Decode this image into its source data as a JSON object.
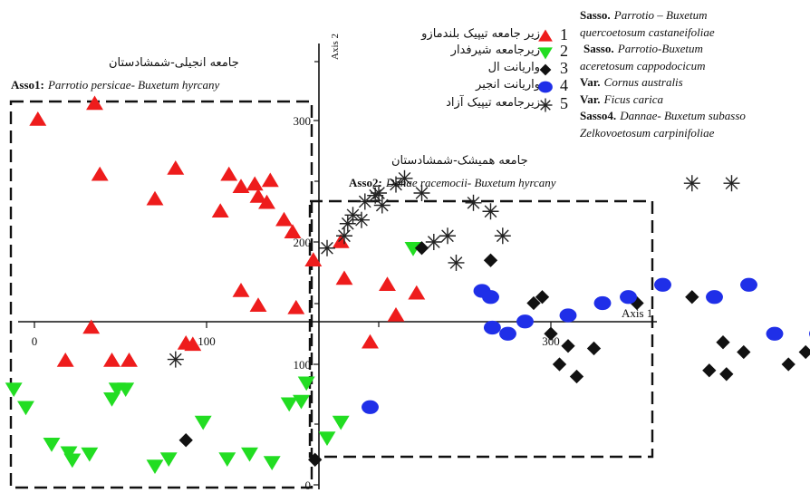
{
  "chart_data": {
    "type": "scatter",
    "xlabel": "Axis 1",
    "ylabel": "Axis 2",
    "xticks": [
      "0",
      "100",
      "300"
    ],
    "yticks": [
      "300",
      "200",
      "100",
      "0"
    ],
    "colors": {
      "g1": "#ee1c1c",
      "g2": "#22dd22",
      "g3": "#111111",
      "g4": "#1f2fe8",
      "g5": "#222222"
    },
    "series": [
      {
        "name": "زیر جامعه تیپیک بلندمازو",
        "marker": "triangle",
        "color": "#ee1c1c",
        "points": [
          [
            2,
            300
          ],
          [
            35,
            313
          ],
          [
            38,
            255
          ],
          [
            33,
            130
          ],
          [
            82,
            260
          ],
          [
            70,
            235
          ],
          [
            108,
            225
          ],
          [
            113,
            255
          ],
          [
            128,
            247
          ],
          [
            120,
            245
          ],
          [
            130,
            237
          ],
          [
            135,
            232
          ],
          [
            137,
            250
          ],
          [
            145,
            218
          ],
          [
            150,
            208
          ],
          [
            178,
            200
          ],
          [
            162,
            185
          ],
          [
            120,
            160
          ],
          [
            130,
            148
          ],
          [
            180,
            170
          ],
          [
            205,
            165
          ],
          [
            222,
            158
          ],
          [
            210,
            140
          ],
          [
            18,
            103
          ],
          [
            45,
            103
          ],
          [
            55,
            103
          ],
          [
            88,
            117
          ],
          [
            92,
            116
          ],
          [
            152,
            146
          ],
          [
            195,
            118
          ]
        ]
      },
      {
        "name": "زیرجامعه شیرفدار",
        "marker": "triangle-down",
        "color": "#22dd22",
        "points": [
          [
            -12,
            80
          ],
          [
            -5,
            65
          ],
          [
            10,
            35
          ],
          [
            20,
            28
          ],
          [
            22,
            22
          ],
          [
            32,
            27
          ],
          [
            45,
            72
          ],
          [
            48,
            80
          ],
          [
            53,
            80
          ],
          [
            70,
            17
          ],
          [
            78,
            23
          ],
          [
            98,
            53
          ],
          [
            112,
            23
          ],
          [
            125,
            27
          ],
          [
            138,
            20
          ],
          [
            148,
            68
          ],
          [
            155,
            70
          ],
          [
            158,
            85
          ],
          [
            170,
            40
          ],
          [
            178,
            53
          ],
          [
            220,
            195
          ]
        ]
      },
      {
        "name": "واریانت ال",
        "marker": "diamond",
        "color": "#111111",
        "points": [
          [
            88,
            38
          ],
          [
            163,
            22
          ],
          [
            225,
            195
          ],
          [
            265,
            185
          ],
          [
            290,
            150
          ],
          [
            295,
            155
          ],
          [
            300,
            125
          ],
          [
            305,
            100
          ],
          [
            310,
            115
          ],
          [
            315,
            90
          ],
          [
            325,
            113
          ],
          [
            350,
            150
          ],
          [
            382,
            155
          ],
          [
            392,
            95
          ],
          [
            400,
            118
          ],
          [
            402,
            92
          ],
          [
            412,
            110
          ],
          [
            438,
            100
          ],
          [
            448,
            110
          ],
          [
            456,
            90
          ],
          [
            480,
            125
          ],
          [
            555,
            170
          ],
          [
            570,
            120
          ],
          [
            570,
            95
          ]
        ]
      },
      {
        "name": "واریانت انجیر",
        "marker": "circle",
        "color": "#1f2fe8",
        "points": [
          [
            195,
            65
          ],
          [
            260,
            160
          ],
          [
            265,
            155
          ],
          [
            266,
            130
          ],
          [
            275,
            125
          ],
          [
            285,
            135
          ],
          [
            310,
            140
          ],
          [
            330,
            150
          ],
          [
            345,
            155
          ],
          [
            365,
            165
          ],
          [
            395,
            155
          ],
          [
            415,
            165
          ],
          [
            430,
            125
          ],
          [
            455,
            125
          ],
          [
            463,
            130
          ],
          [
            490,
            115
          ],
          [
            575,
            200
          ],
          [
            580,
            215
          ],
          [
            590,
            225
          ],
          [
            600,
            215
          ]
        ]
      },
      {
        "name": "زیرجامعه تیپیک آزاد",
        "marker": "star",
        "color": "#222222",
        "points": [
          [
            82,
            104
          ],
          [
            170,
            195
          ],
          [
            180,
            205
          ],
          [
            182,
            215
          ],
          [
            185,
            222
          ],
          [
            190,
            218
          ],
          [
            192,
            233
          ],
          [
            198,
            238
          ],
          [
            200,
            240
          ],
          [
            202,
            230
          ],
          [
            210,
            247
          ],
          [
            215,
            252
          ],
          [
            225,
            240
          ],
          [
            232,
            200
          ],
          [
            240,
            205
          ],
          [
            245,
            183
          ],
          [
            255,
            232
          ],
          [
            265,
            225
          ],
          [
            272,
            205
          ],
          [
            382,
            248
          ],
          [
            405,
            248
          ]
        ]
      }
    ]
  },
  "annotations": {
    "axis1": "Axis 1",
    "axis2": "Axis 2",
    "assoc1_fa": "جامعه انجیلی-شمشادستان",
    "assoc1_tag": "Asso1:",
    "assoc1_name": "Parrotio persicae- Buxetum hyrcany",
    "assoc2_fa": "جامعه همیشک-شمشادستان",
    "assoc2_tag": "Asso2:",
    "assoc2_name": "Danae racemocii- Buxetum hyrcany"
  },
  "legend": [
    {
      "num": "1",
      "label": "زیر جامعه تیپیک بلندمازو",
      "marker": "triangle",
      "color": "#ee1c1c"
    },
    {
      "num": "2",
      "label": "زیرجامعه شیرفدار",
      "marker": "triangle-down",
      "color": "#22dd22"
    },
    {
      "num": "3",
      "label": "واریانت ال",
      "marker": "diamond",
      "color": "#111111"
    },
    {
      "num": "4",
      "label": "واریانت انجیر",
      "marker": "circle",
      "color": "#1f2fe8"
    },
    {
      "num": "5",
      "label": "زیرجامعه تیپیک آزاد",
      "marker": "star",
      "color": "#222222"
    }
  ],
  "side_notes": {
    "l1_bold": "Sasso.",
    "l1_it": "Parrotio – Buxetum",
    "l2_it": "quercoetosum castaneifoliae",
    "l3_bold": "Sasso.",
    "l3_it": "Parrotio-Buxetum",
    "l4_it": "aceretosum cappodocicum",
    "l5_bold": "Var.",
    "l5_it": "Cornus australis",
    "l6_bold": "Var.",
    "l6_it": "Ficus carica",
    "l7_bold": "Sasso4.",
    "l7_it": "Dannae- Buxetum subasso",
    "l8_it": "Zelkovoetosum carpinifoliae"
  }
}
